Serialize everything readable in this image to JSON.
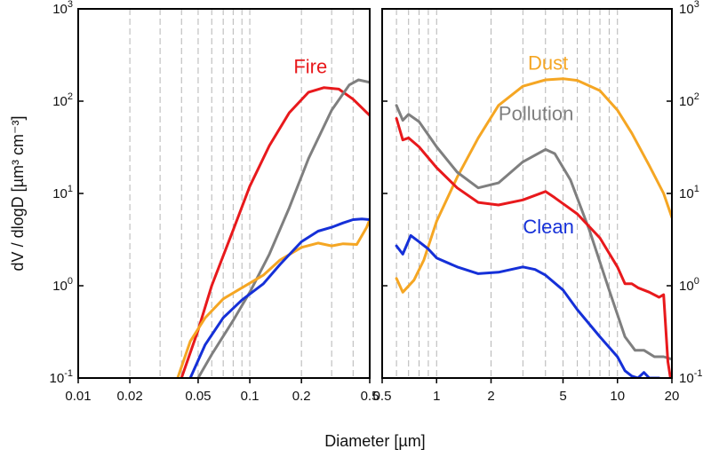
{
  "chart_data": [
    {
      "type": "line",
      "panel": "left",
      "xscale": "log",
      "yscale": "log",
      "xlim": [
        0.01,
        0.5
      ],
      "ylim": [
        0.1,
        1000
      ],
      "xlabel": "Diameter [µm]",
      "ylabel": "dV / dlogD [µm³ cm⁻³]",
      "x_ticks": [
        {
          "value": 0.01,
          "label": "0.01"
        },
        {
          "value": 0.02,
          "label": "0.02"
        },
        {
          "value": 0.05,
          "label": "0.05"
        },
        {
          "value": 0.1,
          "label": "0.1"
        },
        {
          "value": 0.2,
          "label": "0.2"
        },
        {
          "value": 0.5,
          "label": "0.5"
        }
      ],
      "y_ticks": [
        {
          "value": 0.1,
          "base": "10",
          "exp": "-1"
        },
        {
          "value": 1,
          "base": "10",
          "exp": "0"
        },
        {
          "value": 10,
          "base": "10",
          "exp": "1"
        },
        {
          "value": 100,
          "base": "10",
          "exp": "2"
        },
        {
          "value": 1000,
          "base": "10",
          "exp": "3"
        }
      ],
      "grid": "vertical dashed at minor decades",
      "series": [
        {
          "name": "Fire",
          "color": "#e8191c",
          "label_at": [
            0.18,
            200
          ],
          "x": [
            0.04,
            0.05,
            0.06,
            0.08,
            0.1,
            0.13,
            0.17,
            0.22,
            0.27,
            0.33,
            0.4,
            0.5
          ],
          "y": [
            0.1,
            0.33,
            1.0,
            4.0,
            12,
            33,
            75,
            125,
            140,
            135,
            105,
            70
          ]
        },
        {
          "name": "",
          "color": "#7f7f7f",
          "label_at": null,
          "x": [
            0.05,
            0.06,
            0.08,
            0.1,
            0.13,
            0.17,
            0.22,
            0.3,
            0.38,
            0.43,
            0.5
          ],
          "y": [
            0.1,
            0.18,
            0.42,
            0.85,
            2.2,
            7,
            24,
            80,
            150,
            170,
            160
          ]
        },
        {
          "name": "",
          "color": "#f5a623",
          "label_at": null,
          "x": [
            0.038,
            0.045,
            0.055,
            0.07,
            0.09,
            0.12,
            0.15,
            0.2,
            0.25,
            0.3,
            0.35,
            0.42,
            0.48,
            0.5
          ],
          "y": [
            0.1,
            0.25,
            0.45,
            0.72,
            0.95,
            1.3,
            1.9,
            2.6,
            2.9,
            2.7,
            2.85,
            2.8,
            4.3,
            5.2
          ]
        },
        {
          "name": "",
          "color": "#1530d8",
          "label_at": null,
          "x": [
            0.045,
            0.055,
            0.07,
            0.09,
            0.12,
            0.15,
            0.2,
            0.25,
            0.3,
            0.35,
            0.4,
            0.45,
            0.5
          ],
          "y": [
            0.1,
            0.23,
            0.45,
            0.7,
            1.05,
            1.7,
            3.0,
            3.9,
            4.3,
            4.8,
            5.2,
            5.3,
            5.2
          ]
        }
      ]
    },
    {
      "type": "line",
      "panel": "right",
      "xscale": "log",
      "yscale": "log",
      "xlim": [
        0.5,
        20
      ],
      "ylim": [
        0.1,
        1000
      ],
      "x_ticks": [
        {
          "value": 0.5,
          "label": "0.5"
        },
        {
          "value": 1,
          "label": "1"
        },
        {
          "value": 2,
          "label": "2"
        },
        {
          "value": 5,
          "label": "5"
        },
        {
          "value": 10,
          "label": "10"
        },
        {
          "value": 20,
          "label": "20"
        }
      ],
      "y_ticks": [
        {
          "value": 0.1,
          "base": "10",
          "exp": "-1"
        },
        {
          "value": 1,
          "base": "10",
          "exp": "0"
        },
        {
          "value": 10,
          "base": "10",
          "exp": "1"
        },
        {
          "value": 100,
          "base": "10",
          "exp": "2"
        },
        {
          "value": 1000,
          "base": "10",
          "exp": "3"
        }
      ],
      "grid": "vertical dashed at minor decades",
      "series": [
        {
          "name": "Dust",
          "color": "#f5a623",
          "label_at": [
            3.2,
            220
          ],
          "x": [
            0.6,
            0.65,
            0.75,
            0.85,
            1.0,
            1.3,
            1.7,
            2.2,
            3.0,
            4.0,
            5.0,
            6.0,
            8.0,
            10,
            12,
            15,
            18,
            20
          ],
          "y": [
            1.2,
            0.85,
            1.15,
            1.9,
            5.0,
            15,
            40,
            90,
            145,
            170,
            175,
            168,
            130,
            80,
            45,
            20,
            10,
            5.5
          ]
        },
        {
          "name": "Pollution",
          "color": "#7f7f7f",
          "label_at": [
            2.2,
            62
          ],
          "x": [
            0.6,
            0.65,
            0.7,
            0.8,
            1.0,
            1.3,
            1.7,
            2.2,
            3.0,
            4.0,
            4.5,
            5.5,
            7.0,
            9.0,
            11,
            12.5,
            14,
            16,
            18,
            20
          ],
          "y": [
            90,
            62,
            72,
            60,
            32,
            17,
            11.5,
            13,
            22,
            30,
            27,
            14,
            4.0,
            0.9,
            0.28,
            0.2,
            0.2,
            0.17,
            0.17,
            0.16
          ]
        },
        {
          "name": "",
          "color": "#e8191c",
          "label_at": null,
          "x": [
            0.6,
            0.65,
            0.7,
            0.8,
            1.0,
            1.3,
            1.7,
            2.2,
            3.0,
            4.0,
            4.5,
            6.0,
            8.0,
            10,
            11,
            12,
            13,
            15,
            17,
            18,
            19,
            20
          ],
          "y": [
            65,
            38,
            40,
            32,
            19,
            11.5,
            8.0,
            7.5,
            8.5,
            10.5,
            9.0,
            6.0,
            3.3,
            1.6,
            1.05,
            1.05,
            0.95,
            0.85,
            0.75,
            0.8,
            0.15,
            0.08
          ]
        },
        {
          "name": "Clean",
          "color": "#1530d8",
          "label_at": [
            3.0,
            3.7
          ],
          "x": [
            0.6,
            0.65,
            0.72,
            0.8,
            0.9,
            1.0,
            1.3,
            1.7,
            2.2,
            3.0,
            3.5,
            4.0,
            5.0,
            6.0,
            8.0,
            10,
            11,
            12,
            13,
            14,
            15,
            17,
            18,
            19,
            20
          ],
          "y": [
            2.7,
            2.2,
            3.5,
            3.0,
            2.5,
            2.0,
            1.6,
            1.35,
            1.4,
            1.6,
            1.5,
            1.3,
            0.9,
            0.55,
            0.28,
            0.17,
            0.12,
            0.105,
            0.1,
            0.115,
            0.1,
            0.1,
            0.09,
            0.09,
            0.08
          ]
        }
      ]
    }
  ]
}
